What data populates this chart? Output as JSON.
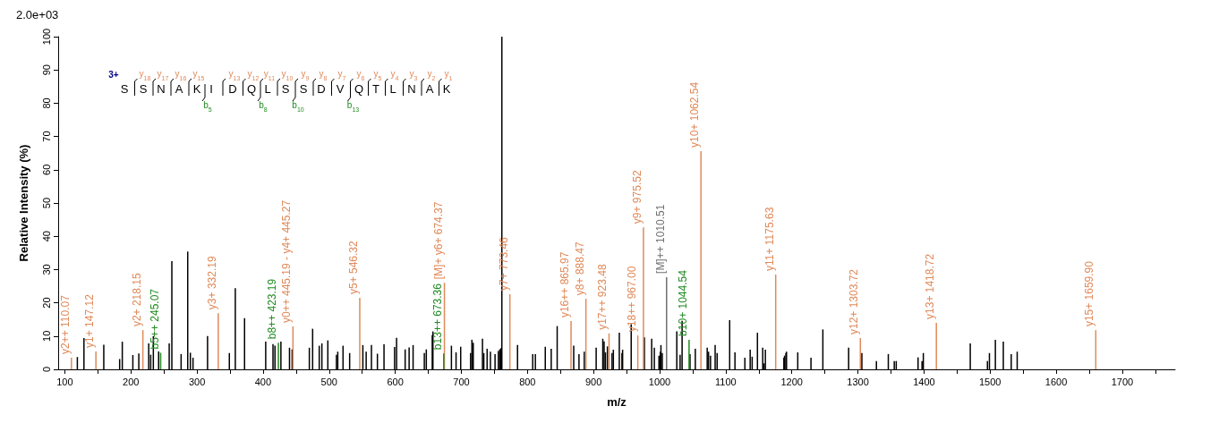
{
  "chart_data": {
    "type": "bar",
    "xlabel": "m/z",
    "ylabel": "Relative Intensity (%)",
    "xlim": [
      90,
      1780
    ],
    "ylim": [
      0,
      100
    ],
    "xticks": [
      100,
      {
        "value": 150,
        "label": null
      },
      200,
      {
        "value": 250,
        "label": null
      },
      300,
      {
        "value": 350,
        "label": null
      },
      400,
      {
        "value": 450,
        "label": null
      },
      500,
      {
        "value": 550,
        "label": null
      },
      600,
      {
        "value": 650,
        "label": null
      },
      700,
      {
        "value": 750,
        "label": null
      },
      800,
      {
        "value": 850,
        "label": null
      },
      900,
      {
        "value": 950,
        "label": null
      },
      1000,
      {
        "value": 1050,
        "label": null
      },
      1100,
      {
        "value": 1150,
        "label": null
      },
      1200,
      {
        "value": 1250,
        "label": null
      },
      1300,
      {
        "value": 1350,
        "label": null
      },
      1400,
      {
        "value": 1450,
        "label": null
      },
      1500,
      {
        "value": 1550,
        "label": null
      },
      1600,
      {
        "value": 1650,
        "label": null
      },
      1700,
      {
        "value": 1750,
        "label": null
      }
    ],
    "yticks": [
      0,
      10,
      20,
      30,
      40,
      50,
      60,
      70,
      80,
      90,
      100
    ],
    "grid": false,
    "annotations": [
      "2.0e+03",
      "3+",
      "S S N A K I D Q L S S D V Q T L N A K",
      "y$_{18}$",
      "y$_{17}$",
      "y$_{16}$",
      "y$_{15}$",
      "y$_{13}$",
      "y$_{12}$",
      "y$_{11}$",
      "y$_{10}$",
      "y$_{9}$",
      "y$_{8}$",
      "y$_{7}$",
      "y$_{6}$",
      "y$_{5}$",
      "y$_{4}$",
      "y$_{3}$",
      "y$_{2}$",
      "y$_{1}$",
      "b$_{5}$",
      "b$_{8}$",
      "b$_{10}$",
      "b$_{13}$",
      {
        "text": "y2++ 110.07",
        "x": 110.07,
        "y": 3.5
      },
      {
        "text": "y1+ 147.12",
        "x": 147.12,
        "y": 5.4
      },
      {
        "text": "y2+ 218.15",
        "x": 218.15,
        "y": 11.8
      },
      {
        "text": "b5++ 245.07",
        "x": 245.07,
        "y": 5.0
      },
      {
        "text": "y3+ 332.19",
        "x": 332.19,
        "y": 16.9
      },
      {
        "text": "b8++ 423.19",
        "x": 423.19,
        "y": 8.0
      },
      {
        "text": "y0++ 445.19 - y4+ 445.27",
        "x": 445.27,
        "y": 12.9
      },
      {
        "text": "y5+ 546.32",
        "x": 546.32,
        "y": 21.5
      },
      {
        "text": "b13++ 673.36",
        "x": 673.36,
        "y": 4.8
      },
      {
        "text": "[M]+ y6+ 674.37",
        "x": 674.37,
        "y": 26
      },
      {
        "text": "y7+ 773.46",
        "x": 773.46,
        "y": 22.6
      },
      {
        "text": "y16++ 865.97",
        "x": 865.97,
        "y": 14.5
      },
      {
        "text": "y8+ 888.47",
        "x": 888.47,
        "y": 21.2
      },
      {
        "text": "y17++ 923.48",
        "x": 923.48,
        "y": 10.8
      },
      {
        "text": "y18++ 967.00",
        "x": 967.0,
        "y": 10.2
      },
      {
        "text": "y9+ 975.52",
        "x": 975.52,
        "y": 42.7
      },
      {
        "text": "[M]++ 1010.51",
        "x": 1010.51,
        "y": 27.7
      },
      {
        "text": "b10+ 1044.54",
        "x": 1044.54,
        "y": 8.9
      },
      {
        "text": "y10+ 1062.54",
        "x": 1062.54,
        "y": 65.6
      },
      {
        "text": "y11+ 1175.63",
        "x": 1175.63,
        "y": 28.5
      },
      {
        "text": "y12+ 1303.72",
        "x": 1303.72,
        "y": 9.4
      },
      {
        "text": "y13+ 1418.72",
        "x": 1418.72,
        "y": 14
      },
      {
        "text": "y15+ 1659.90",
        "x": 1659.9,
        "y": 11.8
      }
    ],
    "series": [
      {
        "color": "#000000",
        "x": [
          119,
          129,
          159,
          183,
          187,
          203,
          212,
          227,
          230,
          234,
          242,
          258,
          262,
          276,
          286,
          290,
          294,
          316,
          349,
          358,
          372,
          404,
          415,
          418,
          427,
          440,
          444,
          470,
          475,
          485,
          489,
          498,
          511,
          513,
          521,
          531,
          551,
          556,
          564,
          573,
          583,
          599,
          602,
          615,
          621,
          627,
          644,
          647,
          656,
          657,
          685,
          692,
          699,
          714,
          716,
          718,
          732,
          734,
          739,
          744,
          751,
          756,
          758,
          760,
          761.3,
          785,
          808,
          812,
          827,
          836,
          845,
          870,
          878,
          886,
          904,
          914,
          916,
          918,
          921,
          928,
          930,
          939,
          943,
          944,
          957,
          977,
          988,
          992,
          999,
          1001,
          1002,
          1004,
          1026,
          1031,
          1034,
          1046,
          1054,
          1072,
          1074,
          1077,
          1084,
          1087,
          1106,
          1114,
          1129,
          1137,
          1140,
          1148,
          1156,
          1158,
          1160,
          1188,
          1189,
          1191,
          1192,
          1209,
          1229,
          1247,
          1286,
          1306,
          1328,
          1346,
          1355,
          1358,
          1391,
          1397,
          1399,
          1470,
          1496,
          1499,
          1508,
          1520,
          1532,
          1541
        ],
        "values": [
          3.7,
          9.4,
          7.4,
          3.1,
          8.3,
          4.3,
          4.8,
          7.8,
          4.4,
          10,
          5.4,
          7.8,
          32.5,
          4.6,
          35.4,
          5,
          3.5,
          10,
          4.9,
          24.4,
          15.4,
          8.3,
          7.6,
          7.1,
          8.3,
          6.5,
          6,
          6.5,
          12.2,
          7.1,
          7.8,
          8.7,
          4.4,
          5.3,
          7.1,
          4.9,
          7.3,
          5.3,
          7.3,
          4.7,
          7.5,
          6.7,
          9.5,
          6,
          6.6,
          7.3,
          4.9,
          6,
          10.3,
          11.4,
          7.1,
          5.1,
          6.8,
          4.9,
          8.9,
          8,
          9.2,
          4.9,
          6.2,
          5.3,
          4.6,
          5.5,
          6,
          6.4,
          100,
          7.3,
          4.6,
          4.6,
          6.8,
          6.2,
          13,
          7.1,
          4.6,
          5.3,
          6.5,
          9.2,
          8.4,
          5.1,
          6.9,
          4.9,
          5.9,
          11,
          4.9,
          5.9,
          13.6,
          9.6,
          9.2,
          6.5,
          4.1,
          5.3,
          7.3,
          4.9,
          11.4,
          4.4,
          14.6,
          4.6,
          6.2,
          6.5,
          5.3,
          4.1,
          7.3,
          4.9,
          14.8,
          5.1,
          3.5,
          5.9,
          3.8,
          11,
          6.5,
          1.8,
          5.9,
          3.5,
          4.1,
          4.9,
          5.3,
          5.1,
          3.5,
          12,
          6.5,
          4.9,
          2.5,
          4.6,
          2.5,
          2.5,
          3.6,
          2.5,
          4.9,
          7.8,
          2.5,
          4.9,
          8.9,
          8.3,
          4.6,
          5.3
        ]
      },
      {
        "color": "#e08a5a",
        "x": [
          110.07,
          147.12,
          218.15,
          332.19,
          445.27,
          546.32,
          674.37,
          773.46,
          865.97,
          888.47,
          923.48,
          967.0,
          975.52,
          1062.54,
          1175.63,
          1303.72,
          1418.72,
          1659.9
        ],
        "values": [
          3.5,
          5.4,
          11.8,
          16.9,
          12.9,
          21.5,
          26,
          22.6,
          14.5,
          21.2,
          10.8,
          10.2,
          42.7,
          65.6,
          28.5,
          9.4,
          14,
          11.8
        ]
      },
      {
        "color": "#228b22",
        "x": [
          245.07,
          423.19,
          673.36,
          1044.54
        ],
        "values": [
          5.0,
          8.0,
          4.8,
          8.9
        ]
      },
      {
        "color": "#707070",
        "x": [
          1010.51
        ],
        "values": [
          27.7
        ]
      }
    ]
  }
}
